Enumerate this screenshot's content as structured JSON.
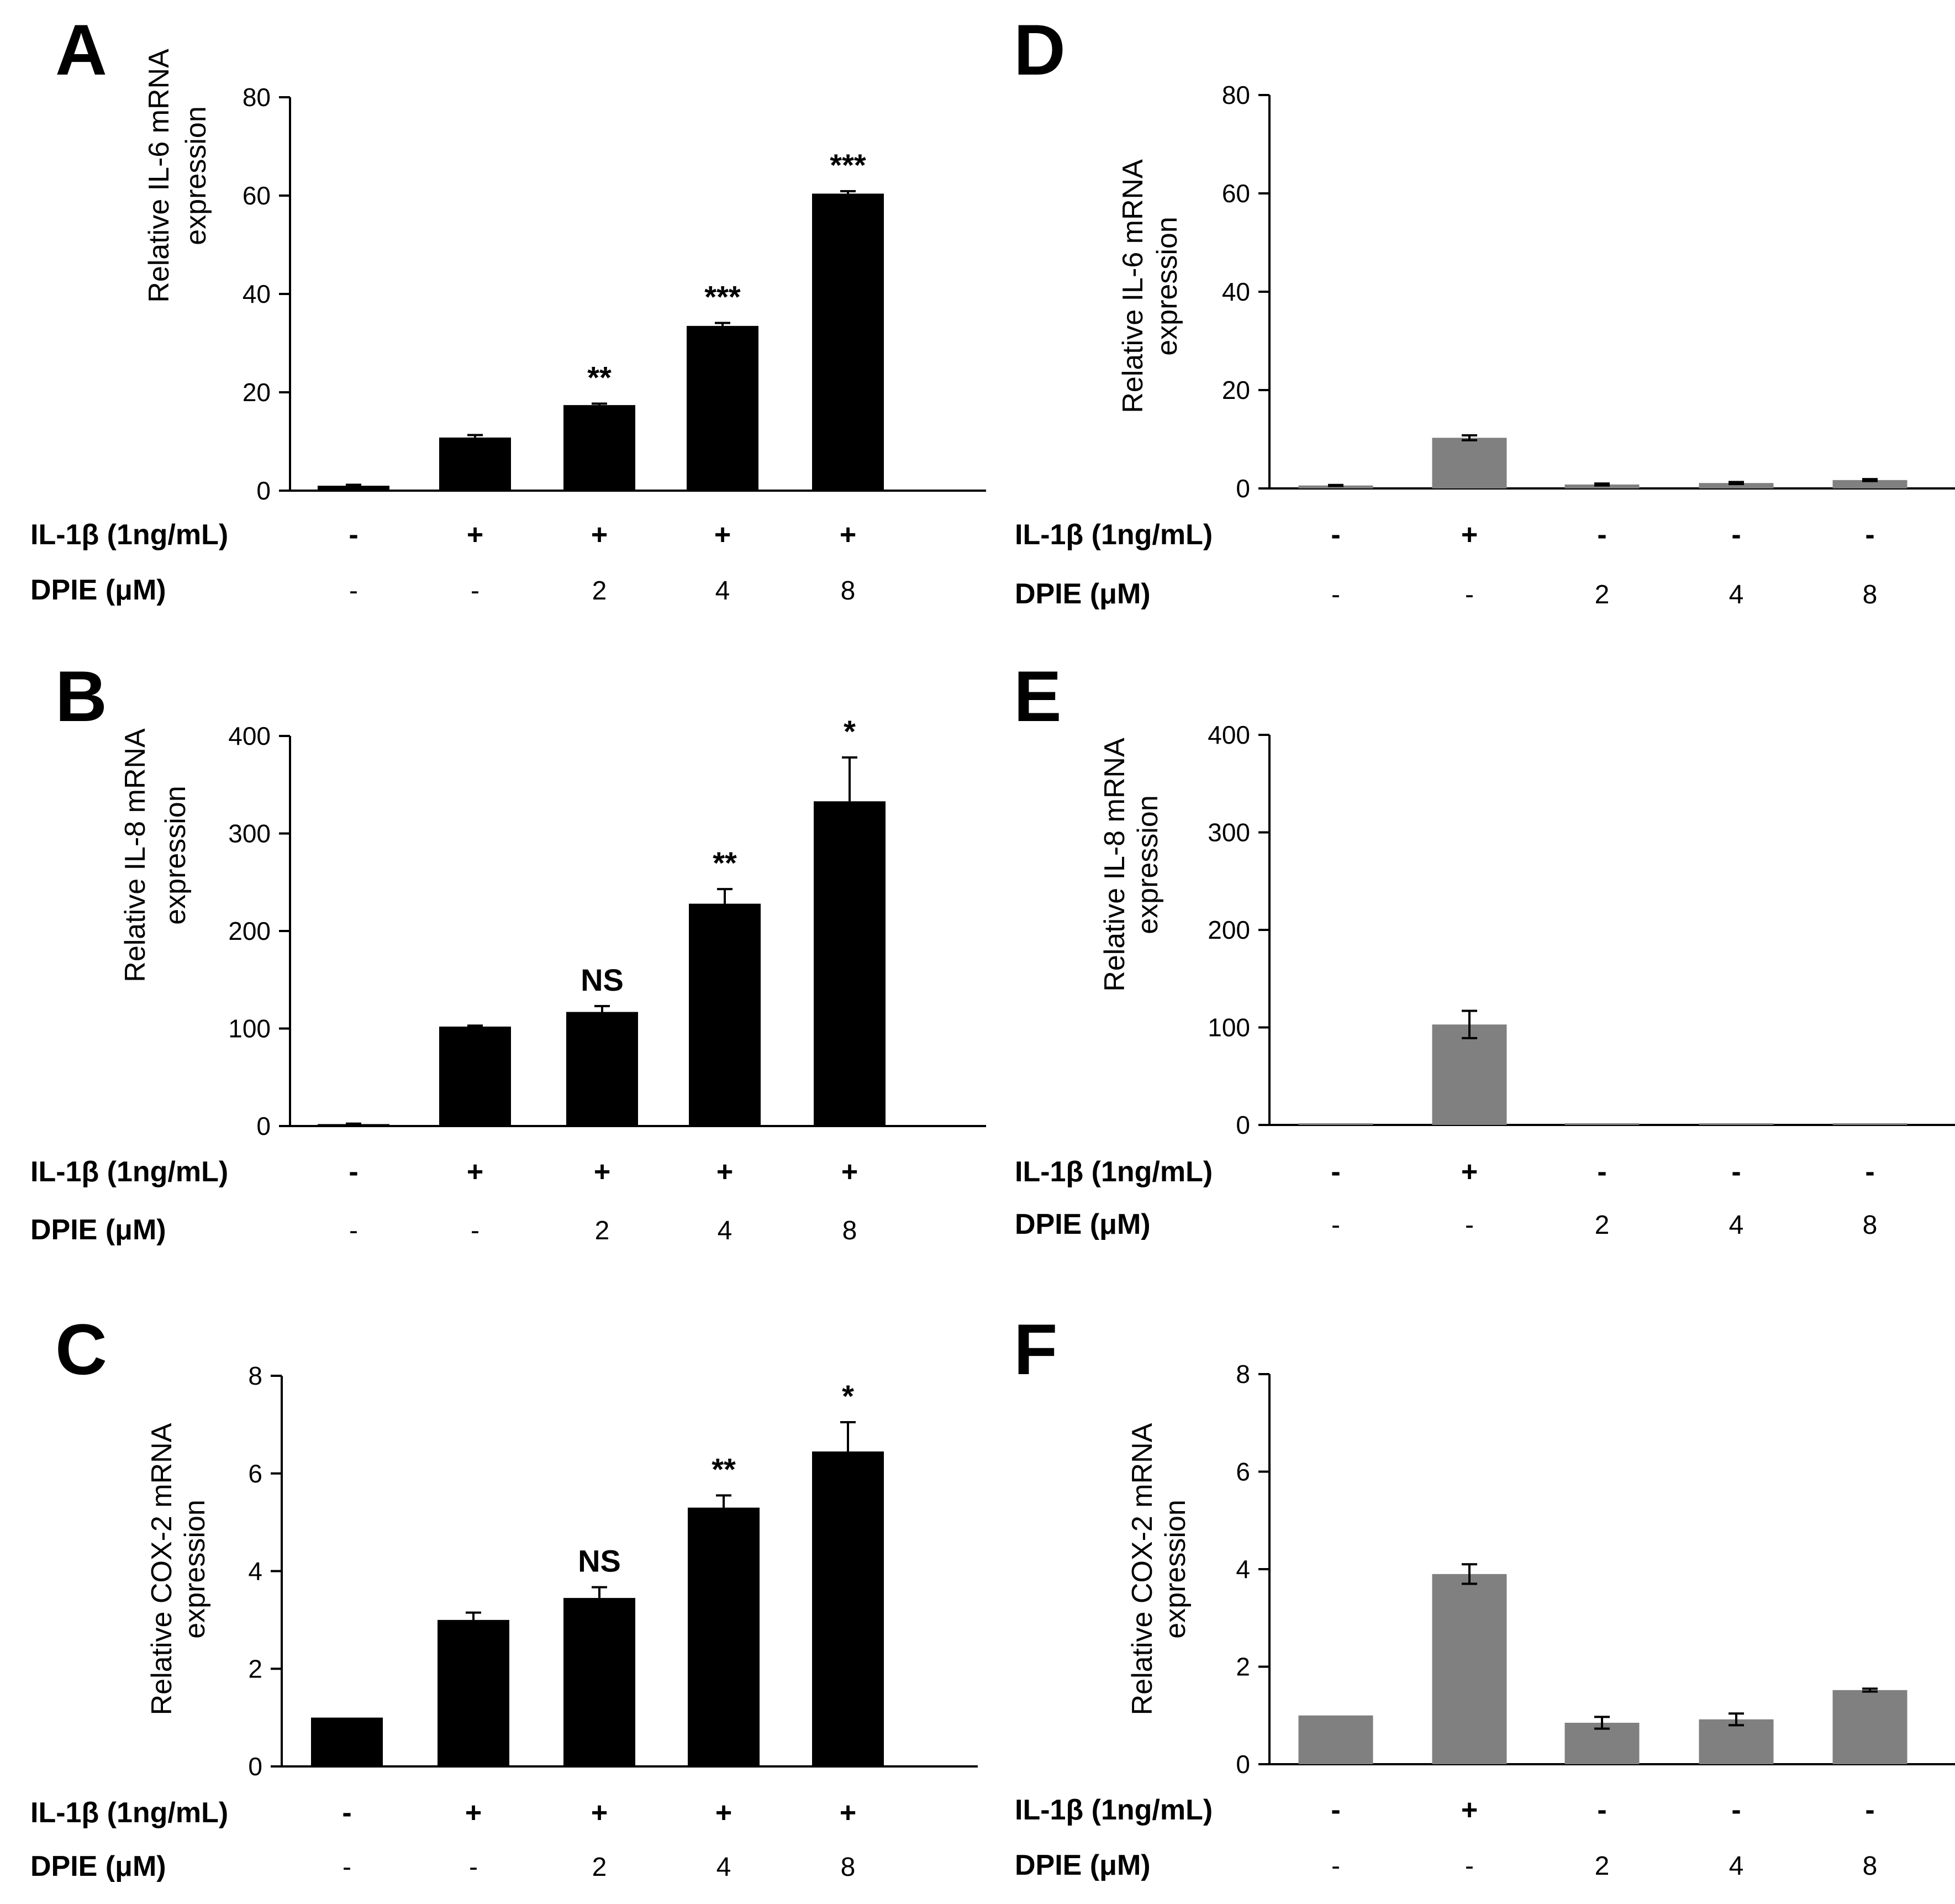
{
  "row_labels": {
    "il1b": "IL-1β (1ng/mL)",
    "dpie": "DPIE  (μM)"
  },
  "colors": {
    "black_bars": "#000000",
    "gray_bars": "#808080",
    "axis": "#000000"
  },
  "chart_data": [
    {
      "panel": "A",
      "type": "bar",
      "ylabel_lines": [
        "Relative IL-6 mRNA",
        "expression"
      ],
      "ylim": [
        0,
        80
      ],
      "yticks": [
        "0",
        "20",
        "40",
        "60",
        "80"
      ],
      "values": [
        1.0,
        10.8,
        17.4,
        33.5,
        60.4
      ],
      "errors": [
        0.2,
        0.5,
        0.3,
        0.6,
        0.5
      ],
      "significance": [
        "",
        "",
        "**",
        "***",
        "***"
      ],
      "il1b": [
        "-",
        "+",
        "+",
        "+",
        "+"
      ],
      "dpie": [
        "-",
        "-",
        "2",
        "4",
        "8"
      ],
      "color": "black"
    },
    {
      "panel": "B",
      "type": "bar",
      "ylabel_lines": [
        "Relative IL-8 mRNA",
        "expression"
      ],
      "ylim": [
        0,
        400
      ],
      "yticks": [
        "0",
        "100",
        "200",
        "300",
        "400"
      ],
      "values": [
        2,
        102,
        117,
        228,
        333
      ],
      "errors": [
        0.5,
        1,
        6,
        15,
        45
      ],
      "significance": [
        "",
        "",
        "NS",
        "**",
        "*"
      ],
      "il1b": [
        "-",
        "+",
        "+",
        "+",
        "+"
      ],
      "dpie": [
        "-",
        "-",
        "2",
        "4",
        "8"
      ],
      "color": "black"
    },
    {
      "panel": "C",
      "type": "bar",
      "ylabel_lines": [
        "Relative COX-2 mRNA",
        "expression"
      ],
      "ylim": [
        0,
        8
      ],
      "yticks": [
        "0",
        "2",
        "4",
        "6",
        "8"
      ],
      "values": [
        1.0,
        3.0,
        3.45,
        5.3,
        6.45
      ],
      "errors": [
        0.0,
        0.15,
        0.22,
        0.25,
        0.6
      ],
      "significance": [
        "",
        "",
        "NS",
        "**",
        "*"
      ],
      "il1b": [
        "-",
        "+",
        "+",
        "+",
        "+"
      ],
      "dpie": [
        "-",
        "-",
        "2",
        "4",
        "8"
      ],
      "color": "black"
    },
    {
      "panel": "D",
      "type": "bar",
      "ylabel_lines": [
        "Relative IL-6 mRNA",
        "expression"
      ],
      "ylim": [
        0,
        80
      ],
      "yticks": [
        "0",
        "20",
        "40",
        "60",
        "80"
      ],
      "values": [
        0.6,
        10.3,
        0.8,
        1.1,
        1.7
      ],
      "errors": [
        0.1,
        0.5,
        0.2,
        0.2,
        0.2
      ],
      "significance": [
        "",
        "",
        "",
        "",
        ""
      ],
      "il1b": [
        "-",
        "+",
        "-",
        "-",
        "-"
      ],
      "dpie": [
        "-",
        "-",
        "2",
        "4",
        "8"
      ],
      "color": "gray"
    },
    {
      "panel": "E",
      "type": "bar",
      "ylabel_lines": [
        "Relative IL-8 mRNA",
        "expression"
      ],
      "ylim": [
        0,
        400
      ],
      "yticks": [
        "0",
        "100",
        "200",
        "300",
        "400"
      ],
      "values": [
        0.5,
        103,
        0.3,
        0.3,
        0.3
      ],
      "errors": [
        0,
        14,
        0,
        0,
        0
      ],
      "significance": [
        "",
        "",
        "",
        "",
        ""
      ],
      "il1b": [
        "-",
        "+",
        "-",
        "-",
        "-"
      ],
      "dpie": [
        "-",
        "-",
        "2",
        "4",
        "8"
      ],
      "color": "gray"
    },
    {
      "panel": "F",
      "type": "bar",
      "ylabel_lines": [
        "Relative COX-2 mRNA",
        "expression"
      ],
      "ylim": [
        0,
        8
      ],
      "yticks": [
        "0",
        "2",
        "4",
        "6",
        "8"
      ],
      "values": [
        1.0,
        3.9,
        0.85,
        0.92,
        1.52
      ],
      "errors": [
        0.0,
        0.2,
        0.12,
        0.12,
        0.03
      ],
      "significance": [
        "",
        "",
        "",
        "",
        ""
      ],
      "il1b": [
        "-",
        "+",
        "-",
        "-",
        "-"
      ],
      "dpie": [
        "-",
        "-",
        "2",
        "4",
        "8"
      ],
      "color": "gray"
    }
  ]
}
